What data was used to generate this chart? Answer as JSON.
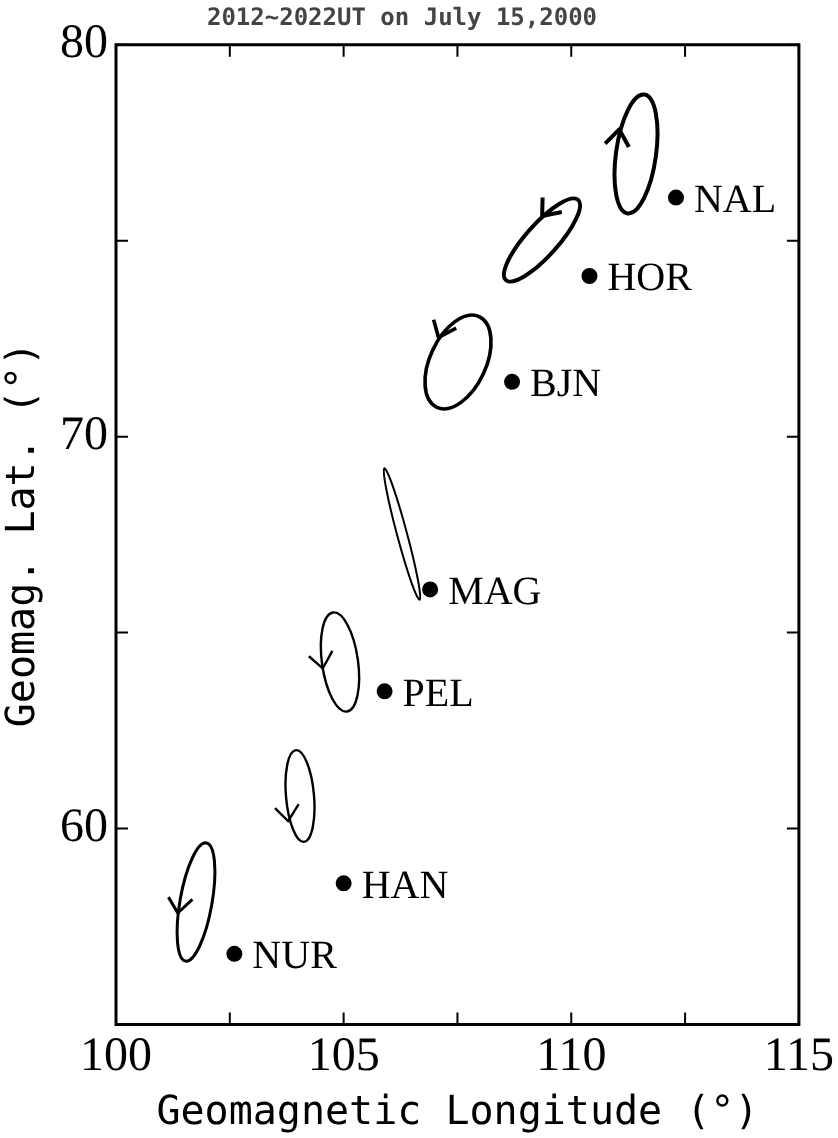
{
  "chart_data": {
    "type": "scatter",
    "title": "2012~2022UT on July 15,2000",
    "xlabel": "Geomagnetic Longitude (°)",
    "ylabel": "Geomag. Lat. (°)",
    "x": [
      112.3,
      110.4,
      108.7,
      106.9,
      105.9,
      105.0,
      102.6
    ],
    "values": [
      76.1,
      74.1,
      71.4,
      66.1,
      63.5,
      58.6,
      56.8
    ],
    "color": "#000000",
    "marker": "circle",
    "xlim": [
      100,
      115
    ],
    "xticks": [
      100,
      {
        "value": 102.5,
        "label": null
      },
      105,
      {
        "value": 107.5,
        "label": null
      },
      110,
      {
        "value": 112.5,
        "label": null
      },
      115
    ],
    "ylim": [
      55,
      80
    ],
    "yticks": [
      {
        "value": 55,
        "label": null
      },
      60,
      {
        "value": 65,
        "label": null
      },
      70,
      {
        "value": 75,
        "label": null
      },
      80
    ],
    "annotations": [
      {
        "text": "NAL",
        "x": 112.3,
        "y": 76.1
      },
      {
        "text": "HOR",
        "x": 110.4,
        "y": 74.1
      },
      {
        "text": "BJN",
        "x": 108.7,
        "y": 71.4
      },
      {
        "text": "MAG",
        "x": 106.9,
        "y": 66.1
      },
      {
        "text": "PEL",
        "x": 105.9,
        "y": 63.5
      },
      {
        "text": "HAN",
        "x": 105.0,
        "y": 58.6
      },
      {
        "text": "NUR",
        "x": 102.6,
        "y": 56.8
      }
    ]
  }
}
